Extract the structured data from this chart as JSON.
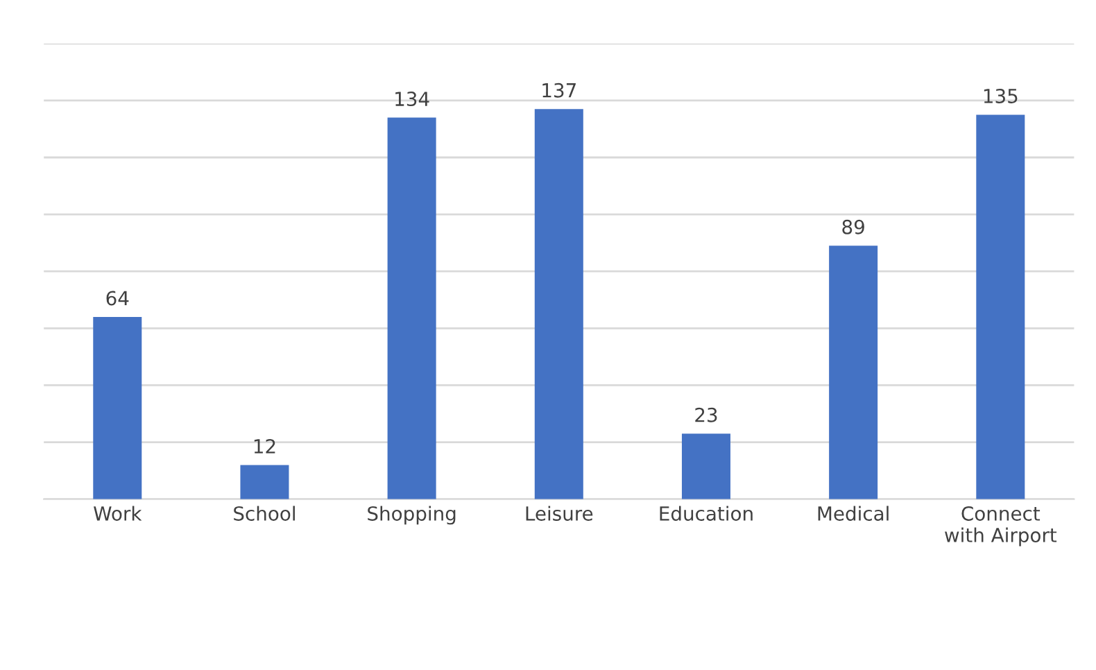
{
  "chart_data": {
    "type": "bar",
    "categories": [
      "Work",
      "School",
      "Shopping",
      "Leisure",
      "Education",
      "Medical",
      "Connect\nwith Airport"
    ],
    "values": [
      64,
      12,
      134,
      137,
      23,
      89,
      135
    ],
    "color": "#4472c4",
    "ylim": [
      0,
      160
    ],
    "yticks": [
      {
        "value": 0,
        "label": null
      },
      {
        "value": 20,
        "label": null
      },
      {
        "value": 40,
        "label": null
      },
      {
        "value": 60,
        "label": null
      },
      {
        "value": 80,
        "label": null
      },
      {
        "value": 100,
        "label": null
      },
      {
        "value": 120,
        "label": null
      },
      {
        "value": 140,
        "label": null
      },
      {
        "value": 160,
        "label": null
      }
    ],
    "grid": "y",
    "tick_labels": "x",
    "data_labels": true
  }
}
